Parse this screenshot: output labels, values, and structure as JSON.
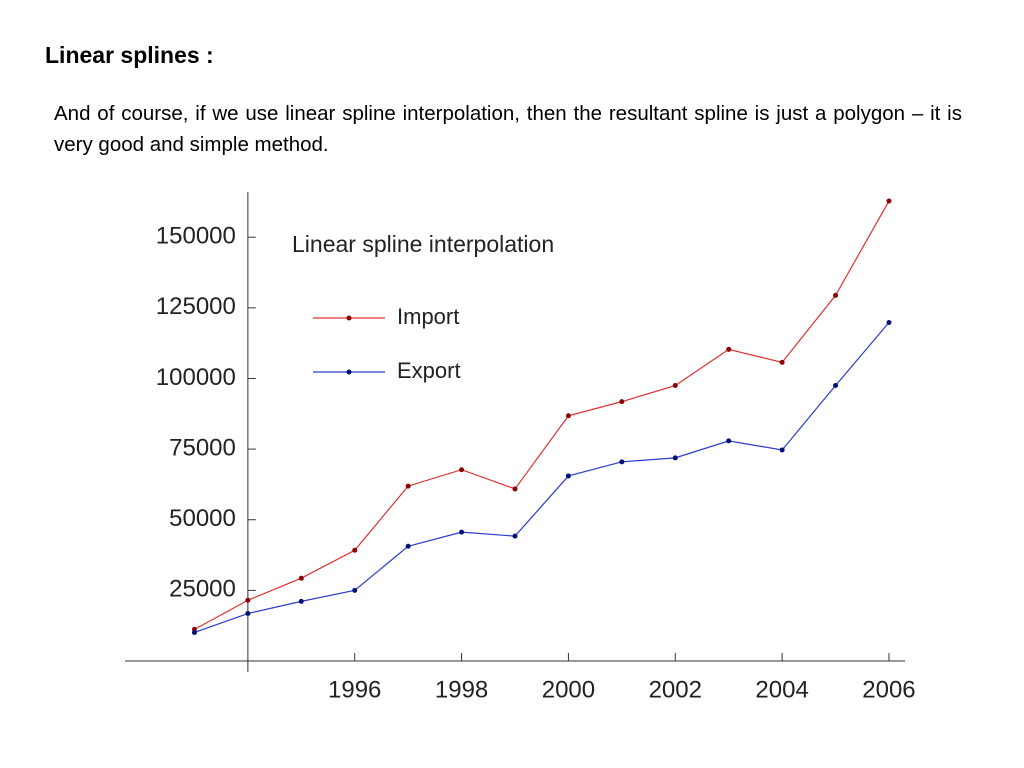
{
  "heading": "Linear splines :",
  "paragraph": "And of course, if we use linear spline interpolation, then the resultant spline is just a polygon – it is very good and simple method.",
  "chart_data": {
    "type": "line",
    "title": "Linear spline interpolation",
    "x": [
      1993,
      1994,
      1995,
      1996,
      1997,
      1998,
      1999,
      2000,
      2001,
      2002,
      2003,
      2004,
      2005,
      2006
    ],
    "series": [
      {
        "name": "Import",
        "color": "#e03030",
        "marker_color": "#8b0000",
        "values": [
          11200,
          21500,
          29300,
          39200,
          61900,
          67700,
          60900,
          86800,
          91800,
          97500,
          110300,
          105700,
          129400,
          162800
        ]
      },
      {
        "name": "Export",
        "color": "#2a3ccc",
        "marker_color": "#00107a",
        "values": [
          10100,
          16800,
          21100,
          25000,
          40600,
          45600,
          44200,
          65500,
          70500,
          71900,
          77900,
          74700,
          97500,
          119800
        ]
      }
    ],
    "xlim": [
      1991.7,
      2006.3
    ],
    "ylim": [
      0,
      166000
    ],
    "xticks": [
      1996,
      1998,
      2000,
      2002,
      2004,
      2006
    ],
    "yticks": [
      25000,
      50000,
      75000,
      100000,
      125000,
      150000
    ],
    "axes_origin": [
      1994,
      0
    ],
    "grid": false,
    "legend": "upper left"
  }
}
